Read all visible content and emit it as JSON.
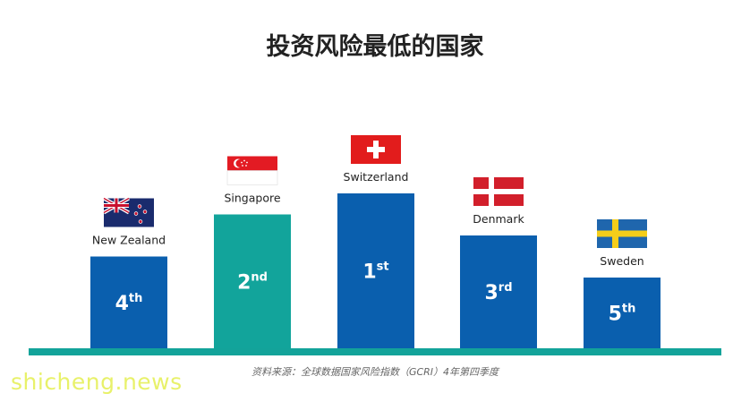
{
  "title": "投资风险最低的国家",
  "source_note": "资料来源：全球数据国家风险指数（GCRI）4年第四季度",
  "watermark": "shicheng.news",
  "colors": {
    "blue": "#0a5fae",
    "teal": "#12a49b",
    "baseline": "#13a39a"
  },
  "chart_data": {
    "type": "bar",
    "categories": [
      "New Zealand",
      "Singapore",
      "Switzerland",
      "Denmark",
      "Sweden"
    ],
    "values": [
      4,
      2,
      1,
      3,
      5
    ],
    "rank_labels": [
      {
        "num": "4",
        "suffix": "th"
      },
      {
        "num": "2",
        "suffix": "nd"
      },
      {
        "num": "1",
        "suffix": "st"
      },
      {
        "num": "3",
        "suffix": "rd"
      },
      {
        "num": "5",
        "suffix": "th"
      }
    ],
    "flags": [
      "new-zealand-flag",
      "singapore-flag",
      "switzerland-flag",
      "denmark-flag",
      "sweden-flag"
    ],
    "bar_colors": [
      "#0a5fae",
      "#12a49b",
      "#0a5fae",
      "#0a5fae",
      "#0a5fae"
    ],
    "title": "投资风险最低的国家",
    "xlabel": "",
    "ylabel": "",
    "grid": false
  }
}
